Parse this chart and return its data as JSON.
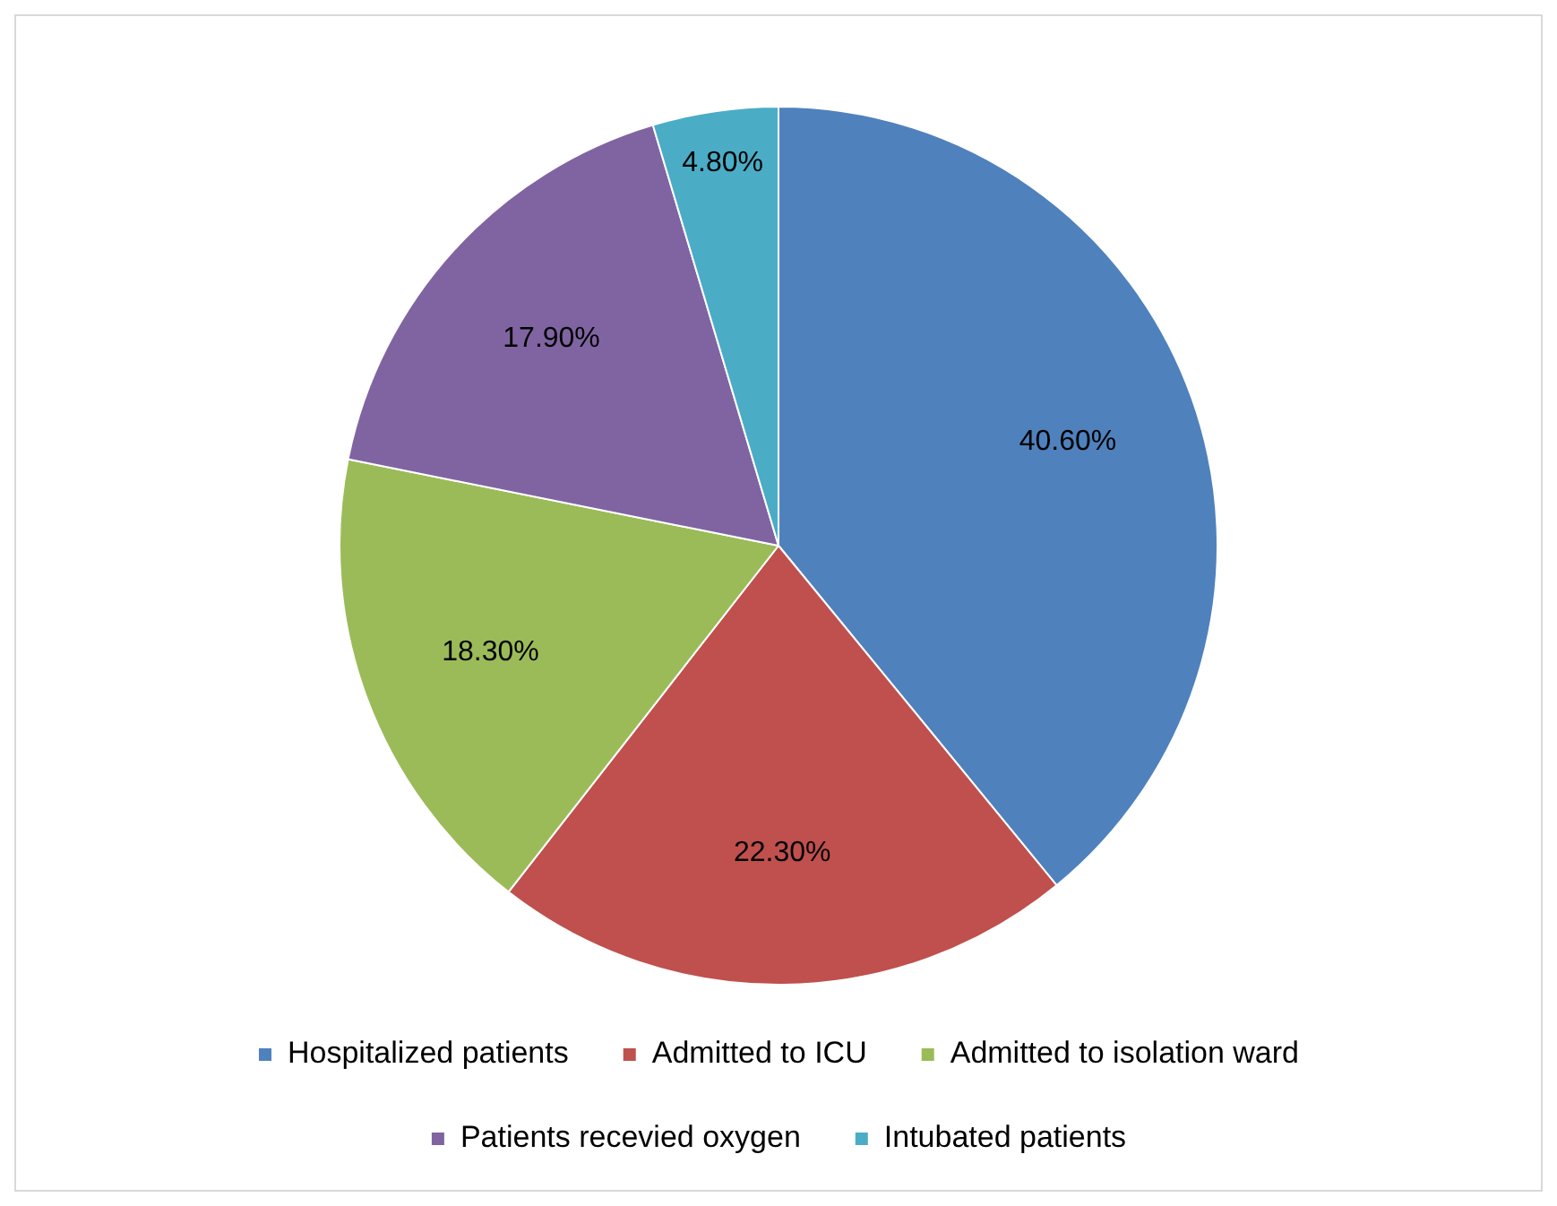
{
  "chart_data": {
    "type": "pie",
    "categories": [
      "Hospitalized patients",
      "Admitted to ICU",
      "Admitted to isolation ward",
      "Patients recevied oxygen",
      "Intubated patients"
    ],
    "values": [
      40.6,
      22.3,
      18.3,
      17.9,
      4.8
    ],
    "colors": [
      "#4f81bd",
      "#c0504d",
      "#9bbb59",
      "#8064a2",
      "#4bacc6"
    ],
    "value_labels": [
      "40.60%",
      "22.30%",
      "18.30%",
      "17.90%",
      "4.80%"
    ],
    "legend": "bottom"
  }
}
